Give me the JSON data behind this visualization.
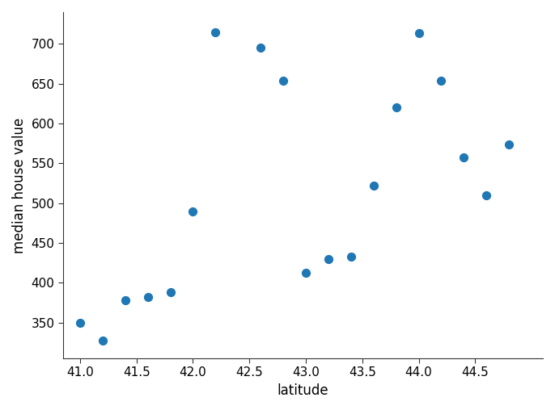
{
  "x": [
    41.0,
    41.2,
    41.4,
    41.6,
    41.8,
    42.0,
    42.2,
    42.6,
    42.8,
    43.0,
    43.2,
    43.4,
    43.6,
    43.8,
    44.0,
    44.2,
    44.4,
    44.6,
    44.8
  ],
  "y": [
    350,
    327,
    378,
    382,
    388,
    490,
    715,
    695,
    654,
    413,
    430,
    433,
    522,
    620,
    714,
    654,
    558,
    510,
    574
  ],
  "xlabel": "latitude",
  "ylabel": "median house value",
  "marker_color": "#1f77b4",
  "marker_size": 50,
  "xlim": [
    40.85,
    45.1
  ],
  "ylim": [
    305,
    740
  ],
  "yticks": [
    350,
    400,
    450,
    500,
    550,
    600,
    650,
    700
  ],
  "xticks": [
    41.0,
    41.5,
    42.0,
    42.5,
    43.0,
    43.5,
    44.0,
    44.5
  ],
  "xlabel_fontsize": 12,
  "ylabel_fontsize": 12,
  "tick_labelsize": 11
}
